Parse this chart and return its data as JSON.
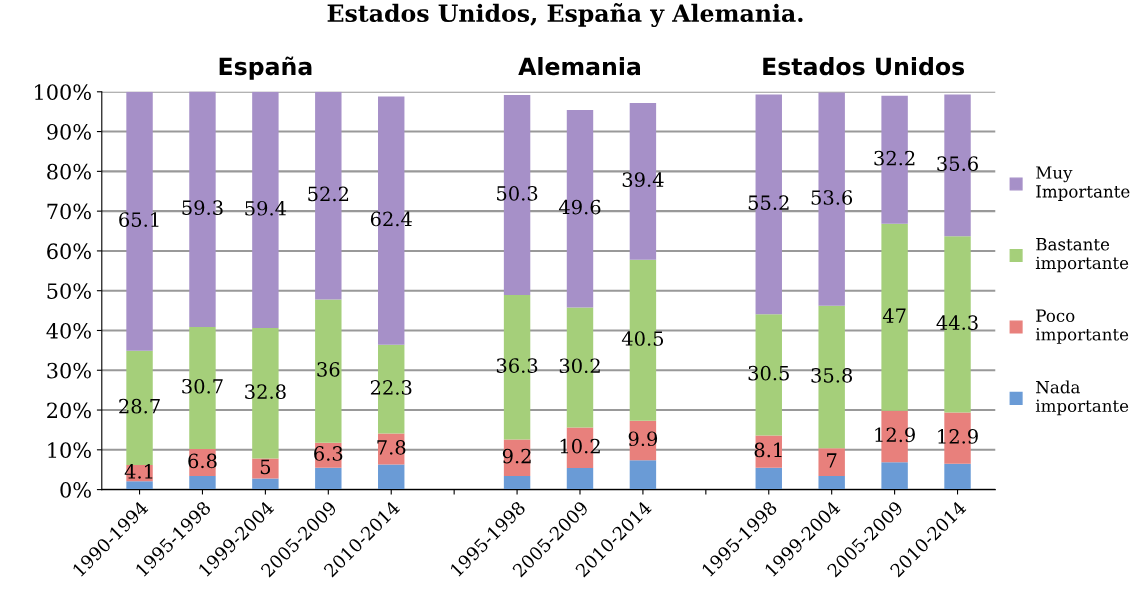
{
  "chart_data": {
    "type": "bar",
    "stacked": true,
    "title": "Estados Unidos, España y Alemania.",
    "categories": [
      "1990-1994",
      "1995-1998",
      "1999-2004",
      "2005-2009",
      "2010-2014",
      null,
      "1995-1998",
      "2005-2009",
      "2010-2014",
      null,
      "1995-1998",
      "1999-2004",
      "2005-2009",
      "2010-2014"
    ],
    "annotations": [
      "España",
      "Alemania",
      "Estados Unidos"
    ],
    "series": [
      {
        "name": "Nada importante",
        "color": "#6a9bd6",
        "values": [
          2.1,
          3.4,
          2.8,
          5.5,
          6.3,
          null,
          3.4,
          5.4,
          7.4,
          null,
          5.5,
          3.4,
          6.9,
          6.5
        ]
      },
      {
        "name": "Poco importante",
        "color": "#e8807c",
        "values": [
          4.1,
          6.8,
          5,
          6.3,
          7.8,
          null,
          9.2,
          10.2,
          9.9,
          null,
          8.1,
          7,
          12.9,
          12.9
        ],
        "value_labels": [
          "4.1",
          "6.8",
          "5",
          "6.3",
          "7.8",
          null,
          "9.2",
          "10.2",
          "9.9",
          null,
          "8.1",
          "7",
          "12.9",
          "12.9"
        ]
      },
      {
        "name": "Bastante importante",
        "color": "#a5cf7a",
        "values": [
          28.7,
          30.7,
          32.8,
          36,
          22.3,
          null,
          36.3,
          30.2,
          40.5,
          null,
          30.5,
          35.8,
          47,
          44.3
        ],
        "value_labels": [
          "28.7",
          "30.7",
          "32.8",
          "36",
          "22.3",
          null,
          "36.3",
          "30.2",
          "40.5",
          null,
          "30.5",
          "35.8",
          "47",
          "44.3"
        ]
      },
      {
        "name": "Muy Importante",
        "color": "#a690c8",
        "values": [
          65.1,
          59.3,
          59.4,
          52.2,
          62.4,
          null,
          50.3,
          49.6,
          39.4,
          null,
          55.2,
          53.6,
          32.2,
          35.6
        ],
        "value_labels": [
          "65.1",
          "59.3",
          "59.4",
          "52.2",
          "62.4",
          null,
          "50.3",
          "49.6",
          "39.4",
          null,
          "55.2",
          "53.6",
          "32.2",
          "35.6"
        ]
      }
    ],
    "ylim": [
      0,
      100
    ],
    "yticks": [
      {
        "value": 0,
        "label": "0%"
      },
      {
        "value": 10,
        "label": "10%"
      },
      {
        "value": 20,
        "label": "20%"
      },
      {
        "value": 30,
        "label": "30%"
      },
      {
        "value": 40,
        "label": "40%"
      },
      {
        "value": 50,
        "label": "50%"
      },
      {
        "value": 60,
        "label": "60%"
      },
      {
        "value": 70,
        "label": "70%"
      },
      {
        "value": 80,
        "label": "80%"
      },
      {
        "value": 90,
        "label": "90%"
      },
      {
        "value": 100,
        "label": "100%"
      }
    ],
    "grid": "y",
    "legend": "right"
  }
}
